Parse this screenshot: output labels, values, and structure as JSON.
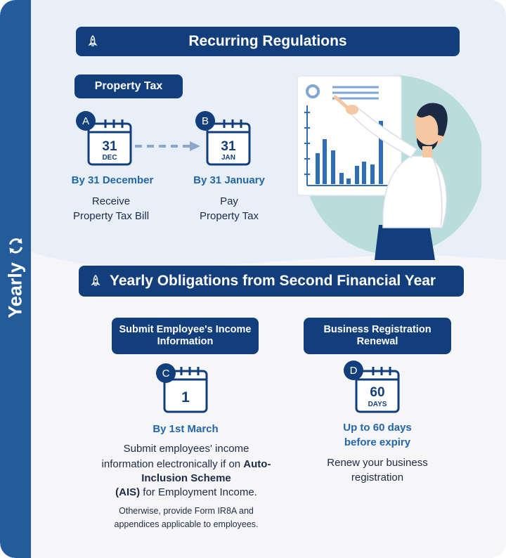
{
  "side_label": "Yearly",
  "banner_top": "Recurring Regulations",
  "banner_bottom": "Yearly Obligations from Second Financial Year",
  "property_tax": {
    "pill": "Property Tax",
    "step_a": {
      "badge": "A",
      "day": "31",
      "month": "DEC",
      "deadline": "By 31 December",
      "desc_line1": "Receive",
      "desc_line2": "Property Tax Bill"
    },
    "step_b": {
      "badge": "B",
      "day": "31",
      "month": "JAN",
      "deadline": "By 31 January",
      "desc_line1": "Pay",
      "desc_line2": "Property Tax"
    }
  },
  "employee_income": {
    "pill_line1": "Submit Employee's Income",
    "pill_line2": "Information",
    "badge": "C",
    "day": "1",
    "deadline": "By 1st March",
    "desc_line1": "Submit employees' income",
    "desc_line2_pre": "information electronically if on ",
    "desc_line2_bold": "Auto-",
    "desc_line3_bold": "Inclusion Scheme",
    "desc_line4_bold": "(AIS)",
    "desc_line4_post": " for Employment Income.",
    "note_line1": "Otherwise, provide Form IR8A and",
    "note_line2": "appendices applicable to employees."
  },
  "business_registration": {
    "pill_line1": "Business Registration",
    "pill_line2": "Renewal",
    "badge": "D",
    "day": "60",
    "month": "DAYS",
    "deadline_line1": "Up to 60 days",
    "deadline_line2": "before expiry",
    "desc_line1": "Renew your business",
    "desc_line2": "registration"
  },
  "colors": {
    "navy": "#123e7c",
    "rail": "#245b9b",
    "accent_blue": "#2366a8",
    "light_bg": "#e8eff9",
    "teal_circle": "#b9dcdc"
  },
  "icons": [
    "rocket-icon",
    "refresh-icon",
    "calendar-icon",
    "arrow-right-icon",
    "chart-board-illustration"
  ]
}
